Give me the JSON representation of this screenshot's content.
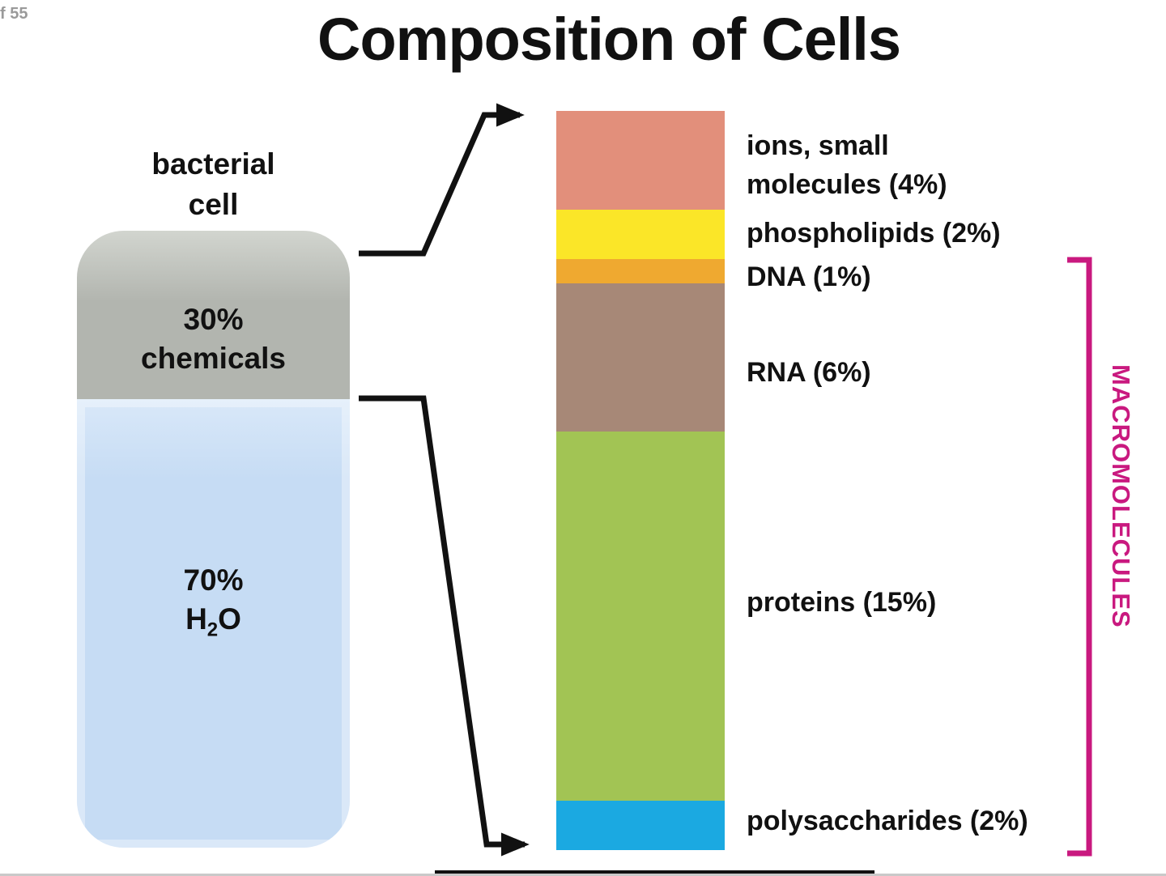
{
  "page": {
    "indicator": "f 55",
    "title": "Composition of Cells"
  },
  "cell": {
    "label_line1": "bacterial",
    "label_line2": "cell",
    "chemicals_percent": "30%",
    "chemicals_word": "chemicals",
    "water_percent": "70%",
    "water_formula_h": "H",
    "water_formula_sub": "2",
    "water_formula_o": "O",
    "colors": {
      "chemicals": "#b2b5af",
      "water": "#c6dcf4"
    }
  },
  "chart_data": {
    "type": "bar",
    "stacked": true,
    "total_percent": 30,
    "segments": [
      {
        "name": "ions-small-molecules",
        "label_lines": [
          "ions, small",
          "molecules (4%)"
        ],
        "percent": 4,
        "color": "#E28F7B"
      },
      {
        "name": "phospholipids",
        "label_lines": [
          "phospholipids (2%)"
        ],
        "percent": 2,
        "color": "#FBE628"
      },
      {
        "name": "dna",
        "label_lines": [
          "DNA (1%)"
        ],
        "percent": 1,
        "color": "#EFA930"
      },
      {
        "name": "rna",
        "label_lines": [
          "RNA (6%)"
        ],
        "percent": 6,
        "color": "#A78877"
      },
      {
        "name": "proteins",
        "label_lines": [
          "proteins (15%)"
        ],
        "percent": 15,
        "color": "#A2C454"
      },
      {
        "name": "polysaccharides",
        "label_lines": [
          "polysaccharides (2%)"
        ],
        "percent": 2,
        "color": "#1BA9E1"
      }
    ]
  },
  "bracket": {
    "label": "MACROMOLECULES",
    "color": "#C9197F"
  },
  "arrows": {
    "color": "#111111"
  }
}
